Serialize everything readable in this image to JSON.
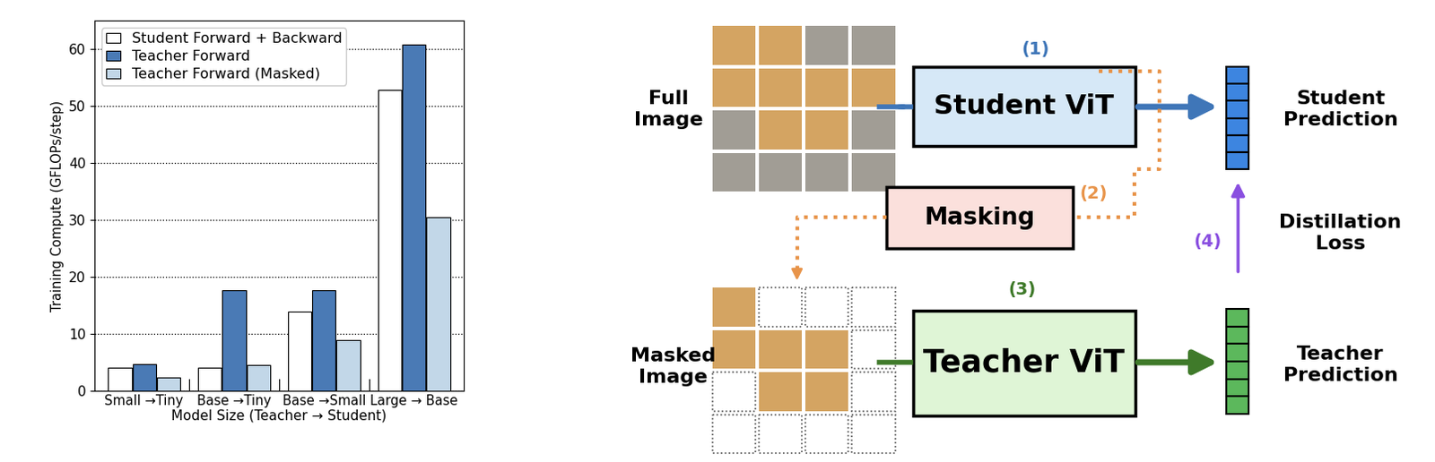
{
  "chart_data": {
    "type": "bar",
    "categories": [
      "Small →Tiny",
      "Base →Tiny",
      "Base →Small",
      "Large → Base"
    ],
    "x_label": "Model Size (Teacher → Student)",
    "y_label": "Training Compute (GFLOPs/step)",
    "ylim": [
      0,
      65
    ],
    "yticks": [
      0,
      10,
      20,
      30,
      40,
      50,
      60
    ],
    "grid": true,
    "legend": "upper left",
    "series": [
      {
        "name": "Student Forward + Backward",
        "color": "#ffffff",
        "values": [
          4.0,
          4.0,
          13.8,
          52.8
        ]
      },
      {
        "name": "Teacher Forward",
        "color": "#4a7ab5",
        "values": [
          4.6,
          17.6,
          17.6,
          60.8
        ]
      },
      {
        "name": "Teacher Forward (Masked)",
        "color": "#c2d7e8",
        "values": [
          2.3,
          4.4,
          8.8,
          30.4
        ]
      }
    ]
  },
  "diagram": {
    "full_image": "Full\nImage",
    "masked_image": "Masked\nImage",
    "student": "Student ViT",
    "teacher": "Teacher ViT",
    "masking": "Masking",
    "student_prediction": "Student\nPrediction",
    "teacher_prediction": "Teacher\nPrediction",
    "loss": "Distillation\nLoss",
    "steps": [
      "(1)",
      "(2)",
      "(3)",
      "(4)"
    ]
  }
}
